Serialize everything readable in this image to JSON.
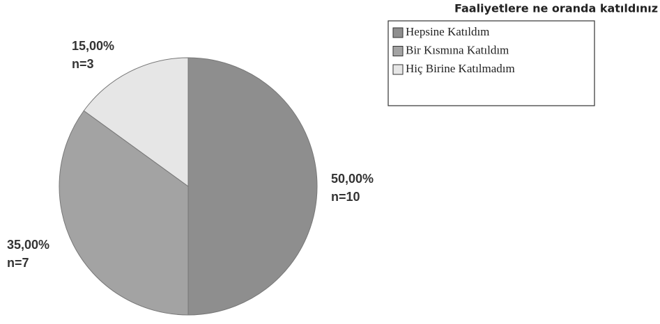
{
  "chart_data": {
    "type": "pie",
    "title": "Faaliyetlere ne oranda katıldınız",
    "categories": [
      "Hepsine Katıldım",
      "Bir Kısmına Katıldım",
      "Hiç Birine Katılmadım"
    ],
    "values": [
      50,
      35,
      15
    ],
    "value_labels": [
      "50,00%",
      "35,00%",
      "15,00%"
    ],
    "n_labels": [
      "n=10",
      "n=7",
      "n=3"
    ],
    "colors": [
      "#8e8e8e",
      "#a3a3a3",
      "#e6e6e6"
    ]
  }
}
